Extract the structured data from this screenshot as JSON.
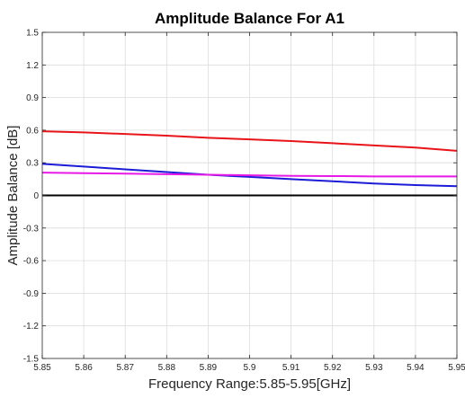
{
  "chart_data": {
    "type": "line",
    "title": "Amplitude Balance For A1",
    "xlabel": "Frequency Range:5.85-5.95[GHz]",
    "ylabel": "Amplitude Balance [dB]",
    "xlim": [
      5.85,
      5.95
    ],
    "ylim": [
      -1.5,
      1.5
    ],
    "xticks": [
      5.85,
      5.86,
      5.87,
      5.88,
      5.89,
      5.9,
      5.91,
      5.92,
      5.93,
      5.94,
      5.95
    ],
    "xtick_labels": [
      "5.85",
      "5.86",
      "5.87",
      "5.88",
      "5.89",
      "5.9",
      "5.91",
      "5.92",
      "5.93",
      "5.94",
      "5.95"
    ],
    "yticks": [
      1.5,
      1.2,
      0.9,
      0.6,
      0.3,
      0,
      -0.3,
      -0.6,
      -0.9,
      -1.2,
      -1.5
    ],
    "ytick_labels": [
      "1.5",
      "1.2",
      "0.9",
      "0.6",
      "0.3",
      "0",
      "-0.3",
      "-0.6",
      "-0.9",
      "-1.2",
      "-1.5"
    ],
    "grid": true,
    "legend": "none",
    "x": [
      5.85,
      5.86,
      5.87,
      5.88,
      5.89,
      5.9,
      5.91,
      5.92,
      5.93,
      5.94,
      5.95
    ],
    "series": [
      {
        "color": "#e8141a",
        "values": [
          0.59,
          0.58,
          0.565,
          0.55,
          0.53,
          0.515,
          0.5,
          0.48,
          0.46,
          0.44,
          0.41
        ]
      },
      {
        "color": "#1c1cd8",
        "values": [
          0.29,
          0.265,
          0.24,
          0.215,
          0.19,
          0.17,
          0.15,
          0.13,
          0.11,
          0.095,
          0.085
        ]
      },
      {
        "color": "#e619e6",
        "values": [
          0.21,
          0.205,
          0.2,
          0.195,
          0.19,
          0.185,
          0.18,
          0.178,
          0.175,
          0.175,
          0.175
        ]
      },
      {
        "color": "#000000",
        "values": [
          0,
          0,
          0,
          0,
          0,
          0,
          0,
          0,
          0,
          0,
          0
        ]
      }
    ]
  }
}
